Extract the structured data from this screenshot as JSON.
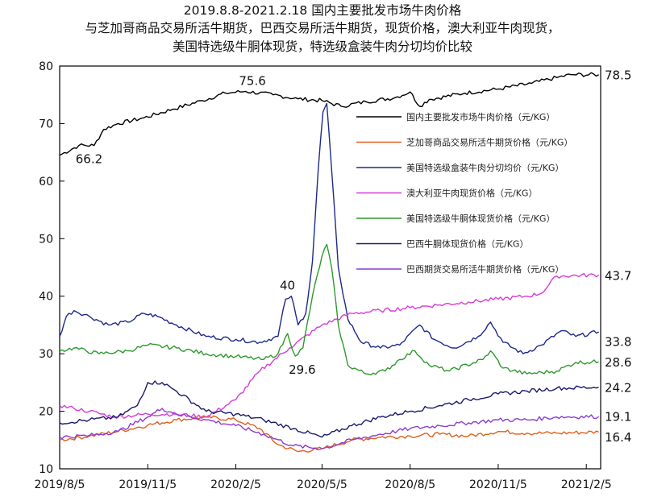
{
  "chart_data": {
    "type": "line",
    "title_lines": [
      "2019.8.8-2021.2.18 国内主要批发市场牛肉价格",
      "与芝加哥商品交易所活牛期货，巴西交易所活牛期货，现货价格，澳大利亚牛肉现货，",
      "美国特选级牛胴体现货，特选级盒装牛肉分切均价比较"
    ],
    "x_tick_labels": [
      "2019/8/5",
      "2019/11/5",
      "2020/2/5",
      "2020/5/5",
      "2020/8/5",
      "2020/11/5",
      "2021/2/5"
    ],
    "y_tick_labels": [
      "10",
      "20",
      "30",
      "40",
      "50",
      "60",
      "70",
      "80"
    ],
    "ylim": [
      10,
      80
    ],
    "x_range": [
      "2019-08-05",
      "2021-02-20"
    ],
    "grid": false,
    "legend_position": "upper-right-inside",
    "annotations": [
      {
        "text": "75.6",
        "date": "2020-02-15",
        "value": 75.6
      },
      {
        "text": "66.2",
        "date": "2019-08-25",
        "value": 66.2
      },
      {
        "text": "40",
        "date": "2020-04-01",
        "value": 40
      },
      {
        "text": "29.6",
        "date": "2020-04-07",
        "value": 29.6
      }
    ],
    "end_labels": [
      "78.5",
      "43.7",
      "33.8",
      "28.6",
      "24.2",
      "19.1",
      "16.4"
    ],
    "series": [
      {
        "name": "国内主要批发市场牛肉价格（元/KG）",
        "color": "#000000",
        "end_label": "78.5",
        "points": [
          [
            "2019-08-05",
            64.5
          ],
          [
            "2019-08-25",
            66.2
          ],
          [
            "2019-09-10",
            66.2
          ],
          [
            "2019-09-20",
            69
          ],
          [
            "2019-10-05",
            70
          ],
          [
            "2019-11-01",
            71
          ],
          [
            "2019-12-01",
            72.5
          ],
          [
            "2020-01-01",
            74
          ],
          [
            "2020-01-25",
            75.3
          ],
          [
            "2020-02-15",
            75.6
          ],
          [
            "2020-03-15",
            75
          ],
          [
            "2020-04-10",
            74.3
          ],
          [
            "2020-05-05",
            74
          ],
          [
            "2020-05-25",
            73
          ],
          [
            "2020-06-20",
            73.8
          ],
          [
            "2020-07-20",
            74.5
          ],
          [
            "2020-08-05",
            75.5
          ],
          [
            "2020-08-15",
            73
          ],
          [
            "2020-08-25",
            74.2
          ],
          [
            "2020-10-01",
            75.3
          ],
          [
            "2020-11-05",
            76
          ],
          [
            "2020-12-10",
            77
          ],
          [
            "2021-01-05",
            78
          ],
          [
            "2021-01-20",
            78.5
          ],
          [
            "2021-02-18",
            78.5
          ]
        ]
      },
      {
        "name": "芝加哥商品交易所活牛期货价格（元/KG）",
        "color": "#e0601c",
        "end_label": "16.4",
        "points": [
          [
            "2019-08-05",
            15
          ],
          [
            "2019-09-05",
            15.7
          ],
          [
            "2019-10-05",
            16.5
          ],
          [
            "2019-11-05",
            17.6
          ],
          [
            "2019-12-05",
            18.5
          ],
          [
            "2020-01-05",
            19
          ],
          [
            "2020-02-05",
            18.5
          ],
          [
            "2020-03-01",
            17
          ],
          [
            "2020-03-20",
            14.2
          ],
          [
            "2020-04-10",
            13
          ],
          [
            "2020-05-05",
            13.5
          ],
          [
            "2020-06-05",
            15
          ],
          [
            "2020-07-05",
            15.5
          ],
          [
            "2020-08-05",
            15.7
          ],
          [
            "2020-09-05",
            16
          ],
          [
            "2020-10-05",
            15.7
          ],
          [
            "2020-11-05",
            16.5
          ],
          [
            "2020-12-05",
            16.2
          ],
          [
            "2021-01-05",
            16.2
          ],
          [
            "2021-02-18",
            16.4
          ]
        ]
      },
      {
        "name": "美国特选级盒装牛肉分切均价（元/KG）",
        "color": "#1e2a8a",
        "end_label": "33.8",
        "points": [
          [
            "2019-08-05",
            33
          ],
          [
            "2019-08-12",
            36.5
          ],
          [
            "2019-08-20",
            37.5
          ],
          [
            "2019-09-05",
            36.5
          ],
          [
            "2019-09-25",
            35
          ],
          [
            "2019-10-15",
            35.5
          ],
          [
            "2019-11-01",
            37
          ],
          [
            "2019-11-15",
            36.5
          ],
          [
            "2019-12-05",
            35
          ],
          [
            "2020-01-05",
            33
          ],
          [
            "2020-02-05",
            32.5
          ],
          [
            "2020-03-01",
            32
          ],
          [
            "2020-03-20",
            33
          ],
          [
            "2020-03-28",
            39.5
          ],
          [
            "2020-04-03",
            40
          ],
          [
            "2020-04-10",
            35
          ],
          [
            "2020-04-18",
            37
          ],
          [
            "2020-04-25",
            46
          ],
          [
            "2020-05-01",
            62
          ],
          [
            "2020-05-06",
            72
          ],
          [
            "2020-05-10",
            73.5
          ],
          [
            "2020-05-15",
            62
          ],
          [
            "2020-05-22",
            45
          ],
          [
            "2020-06-01",
            36
          ],
          [
            "2020-06-15",
            32
          ],
          [
            "2020-07-05",
            31
          ],
          [
            "2020-07-25",
            31.5
          ],
          [
            "2020-08-15",
            35
          ],
          [
            "2020-08-30",
            32.5
          ],
          [
            "2020-09-20",
            31
          ],
          [
            "2020-10-15",
            33
          ],
          [
            "2020-10-28",
            35.5
          ],
          [
            "2020-11-10",
            32
          ],
          [
            "2020-12-01",
            30
          ],
          [
            "2020-12-20",
            31.5
          ],
          [
            "2021-01-10",
            34
          ],
          [
            "2021-01-25",
            33
          ],
          [
            "2021-02-18",
            33.8
          ]
        ]
      },
      {
        "name": "澳大利亚牛肉现货价格（元/KG）",
        "color": "#d63cd6",
        "end_label": "43.7",
        "points": [
          [
            "2019-08-05",
            21
          ],
          [
            "2019-08-20",
            20.5
          ],
          [
            "2019-09-05",
            20
          ],
          [
            "2019-10-01",
            19
          ],
          [
            "2019-11-05",
            19.5
          ],
          [
            "2019-12-05",
            19.5
          ],
          [
            "2020-01-05",
            19
          ],
          [
            "2020-02-05",
            22
          ],
          [
            "2020-03-01",
            27
          ],
          [
            "2020-04-01",
            31
          ],
          [
            "2020-05-05",
            35
          ],
          [
            "2020-06-05",
            37
          ],
          [
            "2020-07-05",
            37.5
          ],
          [
            "2020-08-05",
            38
          ],
          [
            "2020-09-05",
            38.5
          ],
          [
            "2020-10-05",
            39
          ],
          [
            "2020-11-05",
            39.5
          ],
          [
            "2020-12-05",
            40
          ],
          [
            "2020-12-20",
            40.5
          ],
          [
            "2021-01-05",
            43.5
          ],
          [
            "2021-02-18",
            43.7
          ]
        ]
      },
      {
        "name": "美国特选级牛胴体现货价格（元/KG）",
        "color": "#2d9a2d",
        "end_label": "28.6",
        "points": [
          [
            "2019-08-05",
            30.5
          ],
          [
            "2019-08-20",
            31
          ],
          [
            "2019-09-15",
            30
          ],
          [
            "2019-10-15",
            30.5
          ],
          [
            "2019-11-05",
            31.5
          ],
          [
            "2019-12-05",
            31
          ],
          [
            "2020-01-05",
            30
          ],
          [
            "2020-02-05",
            29.5
          ],
          [
            "2020-03-05",
            29
          ],
          [
            "2020-03-20",
            30
          ],
          [
            "2020-03-30",
            33.5
          ],
          [
            "2020-04-07",
            29.6
          ],
          [
            "2020-04-15",
            31
          ],
          [
            "2020-04-25",
            40
          ],
          [
            "2020-05-05",
            47
          ],
          [
            "2020-05-10",
            49
          ],
          [
            "2020-05-15",
            45
          ],
          [
            "2020-05-22",
            35
          ],
          [
            "2020-06-01",
            28
          ],
          [
            "2020-06-20",
            26.5
          ],
          [
            "2020-07-10",
            27
          ],
          [
            "2020-07-25",
            29
          ],
          [
            "2020-08-10",
            30.5
          ],
          [
            "2020-08-25",
            28
          ],
          [
            "2020-09-15",
            27
          ],
          [
            "2020-10-20",
            29
          ],
          [
            "2020-10-28",
            30.5
          ],
          [
            "2020-11-10",
            27.5
          ],
          [
            "2020-12-05",
            26.5
          ],
          [
            "2021-01-05",
            27
          ],
          [
            "2021-01-25",
            28.5
          ],
          [
            "2021-02-18",
            28.6
          ]
        ]
      },
      {
        "name": "巴西牛胴体现货价格（元/KG）",
        "color": "#1a1a6e",
        "end_label": "24.2",
        "points": [
          [
            "2019-08-05",
            18
          ],
          [
            "2019-09-05",
            18.5
          ],
          [
            "2019-10-05",
            19
          ],
          [
            "2019-10-25",
            21
          ],
          [
            "2019-11-05",
            25
          ],
          [
            "2019-11-20",
            25
          ],
          [
            "2019-12-05",
            23.5
          ],
          [
            "2020-01-05",
            20
          ],
          [
            "2020-02-05",
            19.5
          ],
          [
            "2020-03-05",
            18.5
          ],
          [
            "2020-04-05",
            17
          ],
          [
            "2020-05-05",
            15.5
          ],
          [
            "2020-06-05",
            17.5
          ],
          [
            "2020-07-05",
            19
          ],
          [
            "2020-08-05",
            20
          ],
          [
            "2020-09-05",
            21
          ],
          [
            "2020-10-05",
            22
          ],
          [
            "2020-11-05",
            23
          ],
          [
            "2020-12-05",
            23.5
          ],
          [
            "2021-01-05",
            24
          ],
          [
            "2021-02-18",
            24.2
          ]
        ]
      },
      {
        "name": "巴西期货交易所活牛期货价格（元/KG）",
        "color": "#8c3cd0",
        "end_label": "19.1",
        "points": [
          [
            "2019-08-05",
            15.5
          ],
          [
            "2019-09-05",
            15.8
          ],
          [
            "2019-10-05",
            16.5
          ],
          [
            "2019-11-05",
            19
          ],
          [
            "2019-11-20",
            20.5
          ],
          [
            "2019-12-05",
            19.5
          ],
          [
            "2020-01-05",
            18.5
          ],
          [
            "2020-02-05",
            17.5
          ],
          [
            "2020-03-05",
            16
          ],
          [
            "2020-04-05",
            14
          ],
          [
            "2020-05-05",
            13.5
          ],
          [
            "2020-06-05",
            15
          ],
          [
            "2020-07-05",
            16
          ],
          [
            "2020-08-05",
            17
          ],
          [
            "2020-09-05",
            17.5
          ],
          [
            "2020-10-05",
            18
          ],
          [
            "2020-11-05",
            18.5
          ],
          [
            "2020-12-05",
            18.5
          ],
          [
            "2021-01-05",
            19
          ],
          [
            "2021-02-18",
            19.1
          ]
        ]
      }
    ]
  }
}
